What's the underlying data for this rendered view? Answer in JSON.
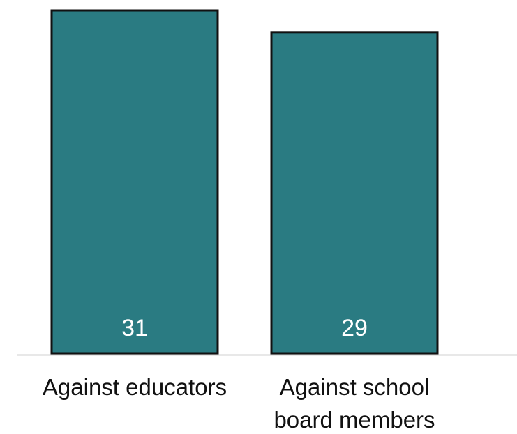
{
  "chart_data": {
    "type": "bar",
    "categories": [
      [
        "Against educators"
      ],
      [
        "Against school",
        "board members"
      ]
    ],
    "values": [
      31,
      29
    ],
    "data_labels": [
      "31",
      "29"
    ],
    "title": "",
    "xlabel": "",
    "ylabel": "",
    "ylim": [
      0,
      31
    ],
    "grid": false,
    "legend": "none",
    "colors": {
      "bar_fill": "#2a7b82",
      "bar_stroke": "#111111",
      "baseline": "#d0d0d0",
      "data_label": "#ffffff",
      "category_label": "#111111"
    }
  }
}
